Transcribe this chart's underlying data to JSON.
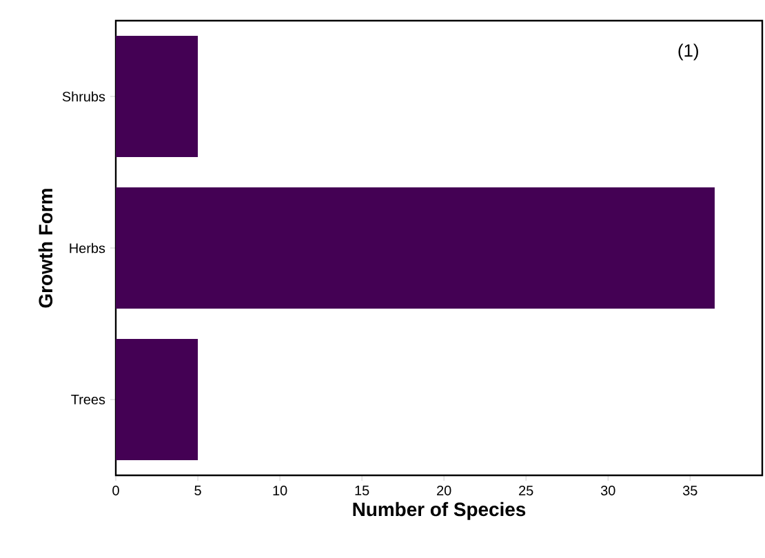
{
  "chart_data": {
    "type": "bar",
    "orientation": "horizontal",
    "categories": [
      "Shrubs",
      "Herbs",
      "Trees"
    ],
    "values": [
      5,
      36.5,
      5
    ],
    "color": "#440154",
    "xlabel": "Number of Species",
    "ylabel": "Growth Form",
    "xlim": [
      0,
      39.4
    ],
    "xticks": [
      0,
      5,
      10,
      15,
      20,
      25,
      30,
      35
    ],
    "annotations": [
      "(1)"
    ]
  }
}
